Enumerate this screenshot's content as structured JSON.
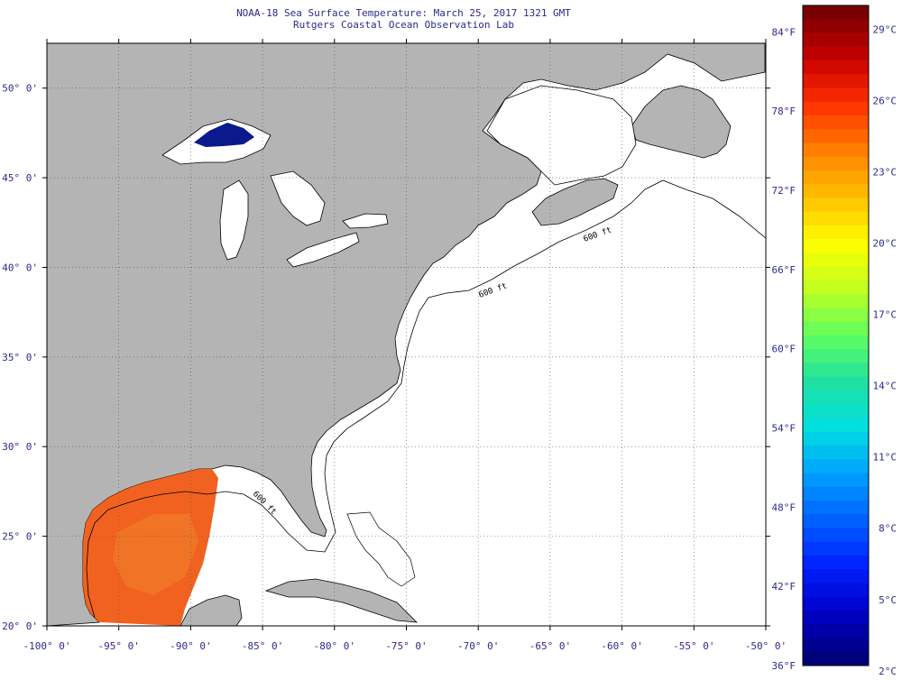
{
  "title": {
    "line1": "NOAA-18 Sea Surface Temperature:  March 25, 2017 1321 GMT",
    "line2": "Rutgers Coastal Ocean Observation Lab"
  },
  "map": {
    "lon_range": [
      -100,
      -50
    ],
    "lat_range": [
      20,
      52.5
    ],
    "lon_ticks": [
      "-100° 0'",
      "-95° 0'",
      "-90° 0'",
      "-85° 0'",
      "-80° 0'",
      "-75° 0'",
      "-70° 0'",
      "-65° 0'",
      "-60° 0'",
      "-55° 0'",
      "-50° 0'"
    ],
    "lat_ticks": [
      "20° 0'",
      "25° 0'",
      "30° 0'",
      "35° 0'",
      "40° 0'",
      "45° 0'",
      "50° 0'"
    ],
    "isobath_labels": [
      "600 ft"
    ],
    "colors": {
      "land": "#b4b4b4",
      "water_no_data": "#ffffff",
      "coast": "#000000",
      "lake_superior": "#0a1a8c",
      "gulf_warm": "#f05a14"
    }
  },
  "colorbar": {
    "f_labels": [
      "84°F",
      "78°F",
      "72°F",
      "66°F",
      "60°F",
      "54°F",
      "48°F",
      "42°F",
      "36°F"
    ],
    "c_labels": [
      "29°C",
      "26°C",
      "23°C",
      "20°C",
      "17°C",
      "14°C",
      "11°C",
      "8°C",
      "5°C",
      "2°C"
    ],
    "f_range": [
      36,
      86
    ],
    "colors_top_to_bottom": [
      "#780000",
      "#c80000",
      "#ff3000",
      "#ff8000",
      "#ffc000",
      "#ffff00",
      "#c0ff20",
      "#60ff60",
      "#20e0a0",
      "#00e0e0",
      "#00a0ff",
      "#0060ff",
      "#0020ff",
      "#0000c8",
      "#000078"
    ]
  }
}
